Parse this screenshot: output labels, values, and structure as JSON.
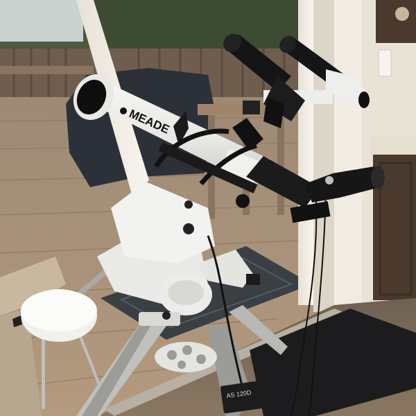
{
  "photo": {
    "brand_label": "MEADE",
    "mount_label": "AS 120D"
  },
  "colors": {
    "tube_white": "#ececea",
    "mount_white": "#e9e9e7",
    "eyepiece_black": "#151515",
    "deck_wood": "#a88f74",
    "doormat": "#3a3f44",
    "floor_tile": "#7a6a58",
    "window_frame": "#f2eee6",
    "cabinet": "#4a3a2e"
  }
}
